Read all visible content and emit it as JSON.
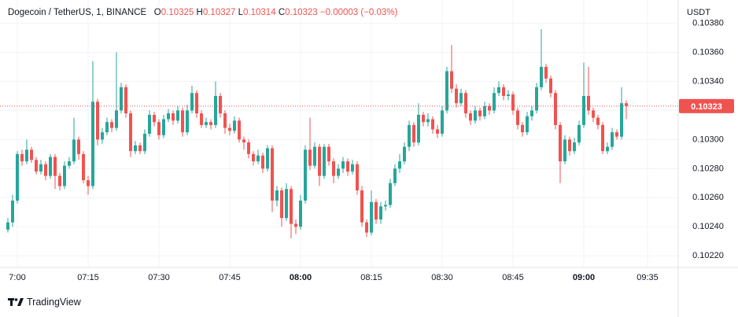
{
  "chart_data": {
    "type": "candlestick",
    "title": "Dogecoin / TetherUS, 1, BINANCE",
    "legend_labels": [
      "O",
      "H",
      "L",
      "C"
    ],
    "change": "−0.00003 (−0.03%)",
    "currency": "USDT",
    "brand": "TradingView",
    "up_color": "#26a69a",
    "down_color": "#ef5350",
    "grid": true,
    "price_line": true,
    "ylim": [
      0.10212,
      0.10396
    ],
    "yticks": [
      {
        "value": 0.1022,
        "label": "0.10220"
      },
      {
        "value": 0.1024,
        "label": "0.10240"
      },
      {
        "value": 0.1026,
        "label": "0.10260"
      },
      {
        "value": 0.1028,
        "label": "0.10280"
      },
      {
        "value": 0.103,
        "label": "0.10300"
      },
      {
        "value": 0.1032,
        "label": "0.10320"
      },
      {
        "value": 0.1034,
        "label": "0.10340"
      },
      {
        "value": 0.1036,
        "label": "0.10360"
      },
      {
        "value": 0.1038,
        "label": "0.10380"
      }
    ],
    "xticks": [
      {
        "value": 2,
        "label": "7:00"
      },
      {
        "value": 17,
        "label": "07:15"
      },
      {
        "value": 32,
        "label": "07:30"
      },
      {
        "value": 47,
        "label": "07:45"
      },
      {
        "value": 62,
        "label": "08:00"
      },
      {
        "value": 77,
        "label": "08:15"
      },
      {
        "value": 92,
        "label": "08:30"
      },
      {
        "value": 107,
        "label": "08:45"
      },
      {
        "value": 122,
        "label": "09:00"
      },
      {
        "value": 135.5,
        "label": "09:35"
      }
    ],
    "open": [
      0.10238,
      0.10243,
      0.10258,
      0.1029,
      0.10285,
      0.10293,
      0.10286,
      0.10278,
      0.10283,
      0.10275,
      0.10288,
      0.10275,
      0.10268,
      0.10282,
      0.10285,
      0.103,
      0.1029,
      0.10272,
      0.10268,
      0.10326,
      0.103,
      0.10305,
      0.10312,
      0.10308,
      0.1032,
      0.10336,
      0.10318,
      0.10292,
      0.10296,
      0.10292,
      0.10304,
      0.10317,
      0.10312,
      0.10303,
      0.10314,
      0.10318,
      0.10313,
      0.1032,
      0.10305,
      0.1032,
      0.10332,
      0.10318,
      0.1031,
      0.10312,
      0.1031,
      0.1033,
      0.10318,
      0.10308,
      0.10306,
      0.10313,
      0.103,
      0.10298,
      0.1029,
      0.10285,
      0.10289,
      0.1028,
      0.10294,
      0.10258,
      0.10265,
      0.10246,
      0.10266,
      0.10242,
      0.1024,
      0.10258,
      0.10293,
      0.10282,
      0.10295,
      0.10275,
      0.10295,
      0.10285,
      0.10275,
      0.1028,
      0.10285,
      0.10278,
      0.10283,
      0.10265,
      0.10243,
      0.10236,
      0.10257,
      0.10245,
      0.10254,
      0.10255,
      0.1027,
      0.1028,
      0.10285,
      0.10295,
      0.1031,
      0.10298,
      0.10317,
      0.10312,
      0.10314,
      0.10307,
      0.10304,
      0.1032,
      0.10347,
      0.10335,
      0.10325,
      0.10332,
      0.10318,
      0.10313,
      0.1032,
      0.10316,
      0.10323,
      0.1032,
      0.10332,
      0.10336,
      0.1033,
      0.10331,
      0.1032,
      0.1031,
      0.10305,
      0.10316,
      0.1032,
      0.10336,
      0.1035,
      0.10342,
      0.10332,
      0.1031,
      0.10285,
      0.103,
      0.10292,
      0.10298,
      0.1031,
      0.1033,
      0.1032,
      0.10315,
      0.1031,
      0.10292,
      0.10295,
      0.10305,
      0.10302,
      0.10325
    ],
    "high": [
      0.10246,
      0.10262,
      0.10292,
      0.10293,
      0.103,
      0.10295,
      0.10288,
      0.10286,
      0.10285,
      0.1029,
      0.1029,
      0.10277,
      0.10285,
      0.10288,
      0.10315,
      0.10302,
      0.10292,
      0.10275,
      0.10354,
      0.10328,
      0.10308,
      0.10315,
      0.10314,
      0.1036,
      0.10339,
      0.10338,
      0.1032,
      0.10299,
      0.10298,
      0.10307,
      0.1032,
      0.10319,
      0.10314,
      0.10317,
      0.10321,
      0.1032,
      0.10323,
      0.10322,
      0.10324,
      0.10337,
      0.10334,
      0.1032,
      0.10315,
      0.10314,
      0.1034,
      0.10332,
      0.1032,
      0.10311,
      0.10316,
      0.10315,
      0.10302,
      0.103,
      0.10292,
      0.10293,
      0.10291,
      0.10296,
      0.10296,
      0.10268,
      0.10267,
      0.1027,
      0.10268,
      0.10245,
      0.10262,
      0.10296,
      0.10315,
      0.10298,
      0.10297,
      0.10297,
      0.10297,
      0.10287,
      0.10283,
      0.10288,
      0.10287,
      0.10286,
      0.10285,
      0.10268,
      0.10245,
      0.10265,
      0.10259,
      0.10257,
      0.10258,
      0.10273,
      0.10283,
      0.1029,
      0.10298,
      0.10313,
      0.10312,
      0.10325,
      0.10319,
      0.10318,
      0.10316,
      0.1031,
      0.10323,
      0.1035,
      0.10365,
      0.10338,
      0.10335,
      0.10334,
      0.1032,
      0.10323,
      0.10322,
      0.10326,
      0.10325,
      0.10336,
      0.1034,
      0.10338,
      0.10334,
      0.10333,
      0.10322,
      0.10312,
      0.10319,
      0.10323,
      0.10339,
      0.10376,
      0.10352,
      0.10344,
      0.10334,
      0.10312,
      0.10303,
      0.10302,
      0.10301,
      0.10313,
      0.10353,
      0.1035,
      0.10322,
      0.10317,
      0.10312,
      0.10298,
      0.10308,
      0.10307,
      0.10336,
      0.10327
    ],
    "low": [
      0.10236,
      0.1024,
      0.10256,
      0.10282,
      0.10283,
      0.10284,
      0.10276,
      0.10276,
      0.10272,
      0.10273,
      0.10266,
      0.10265,
      0.10266,
      0.1028,
      0.10283,
      0.10286,
      0.1027,
      0.10262,
      0.10266,
      0.10296,
      0.10297,
      0.10303,
      0.10305,
      0.10306,
      0.10318,
      0.10315,
      0.10288,
      0.1029,
      0.1029,
      0.1029,
      0.10302,
      0.10309,
      0.103,
      0.10301,
      0.10312,
      0.1031,
      0.10311,
      0.10302,
      0.10303,
      0.10318,
      0.10315,
      0.10308,
      0.10308,
      0.10307,
      0.10308,
      0.10315,
      0.10304,
      0.10303,
      0.10304,
      0.10298,
      0.10293,
      0.10287,
      0.10282,
      0.10283,
      0.10277,
      0.10278,
      0.1025,
      0.10254,
      0.1024,
      0.10244,
      0.10232,
      0.10235,
      0.10238,
      0.10256,
      0.10279,
      0.1028,
      0.10268,
      0.10273,
      0.10282,
      0.1027,
      0.10273,
      0.10277,
      0.10275,
      0.10276,
      0.10262,
      0.1024,
      0.10233,
      0.10234,
      0.10242,
      0.10242,
      0.10251,
      0.10253,
      0.10268,
      0.10277,
      0.10283,
      0.10292,
      0.10295,
      0.10296,
      0.10309,
      0.10309,
      0.10304,
      0.10301,
      0.10302,
      0.10318,
      0.10332,
      0.10322,
      0.10323,
      0.10315,
      0.1031,
      0.10311,
      0.10313,
      0.10314,
      0.10317,
      0.10318,
      0.1033,
      0.10327,
      0.10327,
      0.10317,
      0.10307,
      0.10302,
      0.10303,
      0.10313,
      0.10318,
      0.10334,
      0.10339,
      0.10329,
      0.10307,
      0.1027,
      0.10283,
      0.10289,
      0.1029,
      0.10296,
      0.10308,
      0.10317,
      0.10312,
      0.10307,
      0.1029,
      0.1029,
      0.10293,
      0.103,
      0.103,
      0.10314
    ],
    "close": [
      0.10243,
      0.10258,
      0.1029,
      0.10285,
      0.10293,
      0.10286,
      0.10278,
      0.10283,
      0.10275,
      0.10288,
      0.10275,
      0.10268,
      0.10282,
      0.10285,
      0.103,
      0.1029,
      0.10272,
      0.10268,
      0.10326,
      0.103,
      0.10305,
      0.10312,
      0.10308,
      0.1032,
      0.10336,
      0.10318,
      0.10292,
      0.10296,
      0.10292,
      0.10304,
      0.10317,
      0.10312,
      0.10303,
      0.10314,
      0.10318,
      0.10313,
      0.1032,
      0.10305,
      0.1032,
      0.10332,
      0.10318,
      0.1031,
      0.10312,
      0.1031,
      0.1033,
      0.10318,
      0.10308,
      0.10306,
      0.10313,
      0.103,
      0.10298,
      0.1029,
      0.10285,
      0.10289,
      0.1028,
      0.10294,
      0.10258,
      0.10265,
      0.10246,
      0.10266,
      0.10242,
      0.1024,
      0.10258,
      0.10293,
      0.10282,
      0.10295,
      0.10275,
      0.10295,
      0.10285,
      0.10275,
      0.1028,
      0.10285,
      0.10278,
      0.10283,
      0.10265,
      0.10243,
      0.10236,
      0.10257,
      0.10245,
      0.10254,
      0.10255,
      0.1027,
      0.1028,
      0.10285,
      0.10295,
      0.1031,
      0.10298,
      0.10317,
      0.10312,
      0.10314,
      0.10307,
      0.10304,
      0.1032,
      0.10347,
      0.10335,
      0.10325,
      0.10332,
      0.10318,
      0.10313,
      0.1032,
      0.10316,
      0.10323,
      0.1032,
      0.10332,
      0.10336,
      0.1033,
      0.10331,
      0.1032,
      0.1031,
      0.10305,
      0.10316,
      0.1032,
      0.10336,
      0.1035,
      0.10342,
      0.10332,
      0.1031,
      0.10285,
      0.103,
      0.10292,
      0.10298,
      0.1031,
      0.1033,
      0.1032,
      0.10315,
      0.1031,
      0.10292,
      0.10295,
      0.10305,
      0.10302,
      0.10325,
      0.10323
    ]
  }
}
